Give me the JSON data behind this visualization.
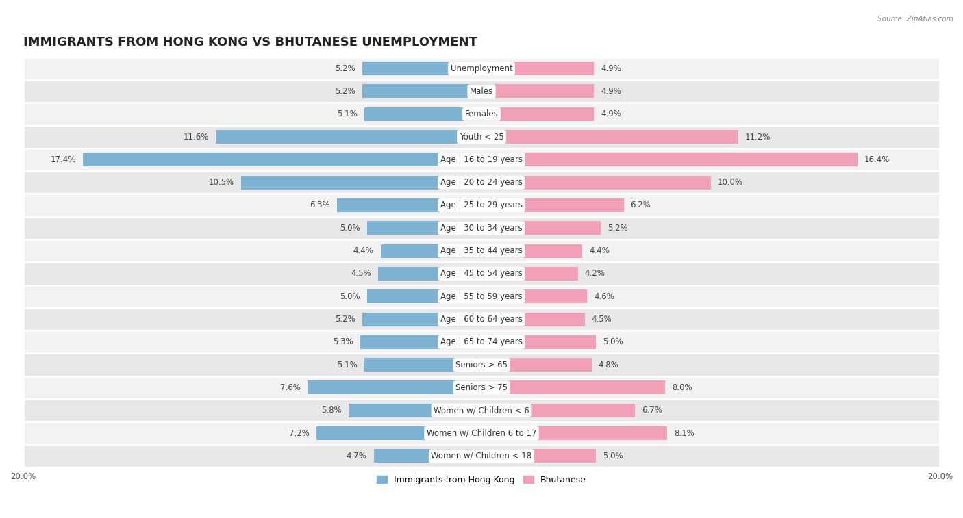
{
  "title": "IMMIGRANTS FROM HONG KONG VS BHUTANESE UNEMPLOYMENT",
  "source": "Source: ZipAtlas.com",
  "categories": [
    "Unemployment",
    "Males",
    "Females",
    "Youth < 25",
    "Age | 16 to 19 years",
    "Age | 20 to 24 years",
    "Age | 25 to 29 years",
    "Age | 30 to 34 years",
    "Age | 35 to 44 years",
    "Age | 45 to 54 years",
    "Age | 55 to 59 years",
    "Age | 60 to 64 years",
    "Age | 65 to 74 years",
    "Seniors > 65",
    "Seniors > 75",
    "Women w/ Children < 6",
    "Women w/ Children 6 to 17",
    "Women w/ Children < 18"
  ],
  "hk_values": [
    5.2,
    5.2,
    5.1,
    11.6,
    17.4,
    10.5,
    6.3,
    5.0,
    4.4,
    4.5,
    5.0,
    5.2,
    5.3,
    5.1,
    7.6,
    5.8,
    7.2,
    4.7
  ],
  "bt_values": [
    4.9,
    4.9,
    4.9,
    11.2,
    16.4,
    10.0,
    6.2,
    5.2,
    4.4,
    4.2,
    4.6,
    4.5,
    5.0,
    4.8,
    8.0,
    6.7,
    8.1,
    5.0
  ],
  "hk_color": "#7fb3d3",
  "bt_color": "#f2a0b8",
  "bar_height": 0.6,
  "max_val": 20.0,
  "row_bg_colors": [
    "#f2f2f2",
    "#e8e8e8"
  ],
  "row_sep_color": "#ffffff",
  "legend_hk": "Immigrants from Hong Kong",
  "legend_bt": "Bhutanese",
  "title_fontsize": 13,
  "label_fontsize": 8.5,
  "value_fontsize": 8.5,
  "source_fontsize": 7.5
}
